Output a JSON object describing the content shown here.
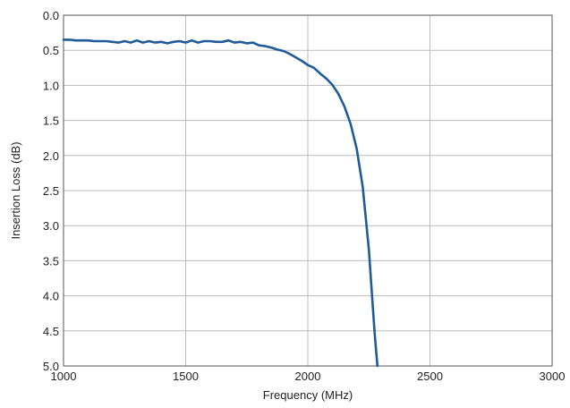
{
  "chart_data": {
    "type": "line",
    "xlabel": "Frequency (MHz)",
    "ylabel": "Insertion Loss (dB)",
    "xlim": [
      1000,
      3000
    ],
    "ylim": [
      0.0,
      5.0
    ],
    "y_inverted": true,
    "grid": true,
    "xticks": [
      "1000",
      "1500",
      "2000",
      "2500",
      "3000"
    ],
    "yticks": [
      "0.0",
      "0.5",
      "1.0",
      "1.5",
      "2.0",
      "2.5",
      "3.0",
      "3.5",
      "4.0",
      "4.5",
      "5.0"
    ],
    "colors": {
      "series": "#1f5a9a",
      "grid": "#bbbbbb",
      "frame": "#555555"
    },
    "series": [
      {
        "x": [
          1000,
          1025,
          1050,
          1075,
          1100,
          1125,
          1150,
          1175,
          1200,
          1225,
          1250,
          1275,
          1300,
          1325,
          1350,
          1375,
          1400,
          1425,
          1450,
          1475,
          1500,
          1525,
          1550,
          1575,
          1600,
          1625,
          1650,
          1675,
          1700,
          1725,
          1750,
          1775,
          1800,
          1825,
          1850,
          1875,
          1900,
          1925,
          1950,
          1975,
          2000,
          2025,
          2050,
          2075,
          2100,
          2125,
          2150,
          2175,
          2200,
          2225,
          2250,
          2265,
          2275,
          2285
        ],
        "y": [
          0.35,
          0.35,
          0.36,
          0.36,
          0.36,
          0.37,
          0.37,
          0.37,
          0.38,
          0.39,
          0.37,
          0.39,
          0.36,
          0.39,
          0.37,
          0.39,
          0.38,
          0.4,
          0.38,
          0.37,
          0.39,
          0.36,
          0.39,
          0.37,
          0.37,
          0.38,
          0.38,
          0.36,
          0.39,
          0.38,
          0.4,
          0.39,
          0.43,
          0.44,
          0.46,
          0.49,
          0.51,
          0.55,
          0.6,
          0.65,
          0.71,
          0.75,
          0.83,
          0.9,
          0.99,
          1.12,
          1.3,
          1.55,
          1.9,
          2.45,
          3.35,
          4.1,
          4.6,
          5.0
        ]
      }
    ]
  }
}
